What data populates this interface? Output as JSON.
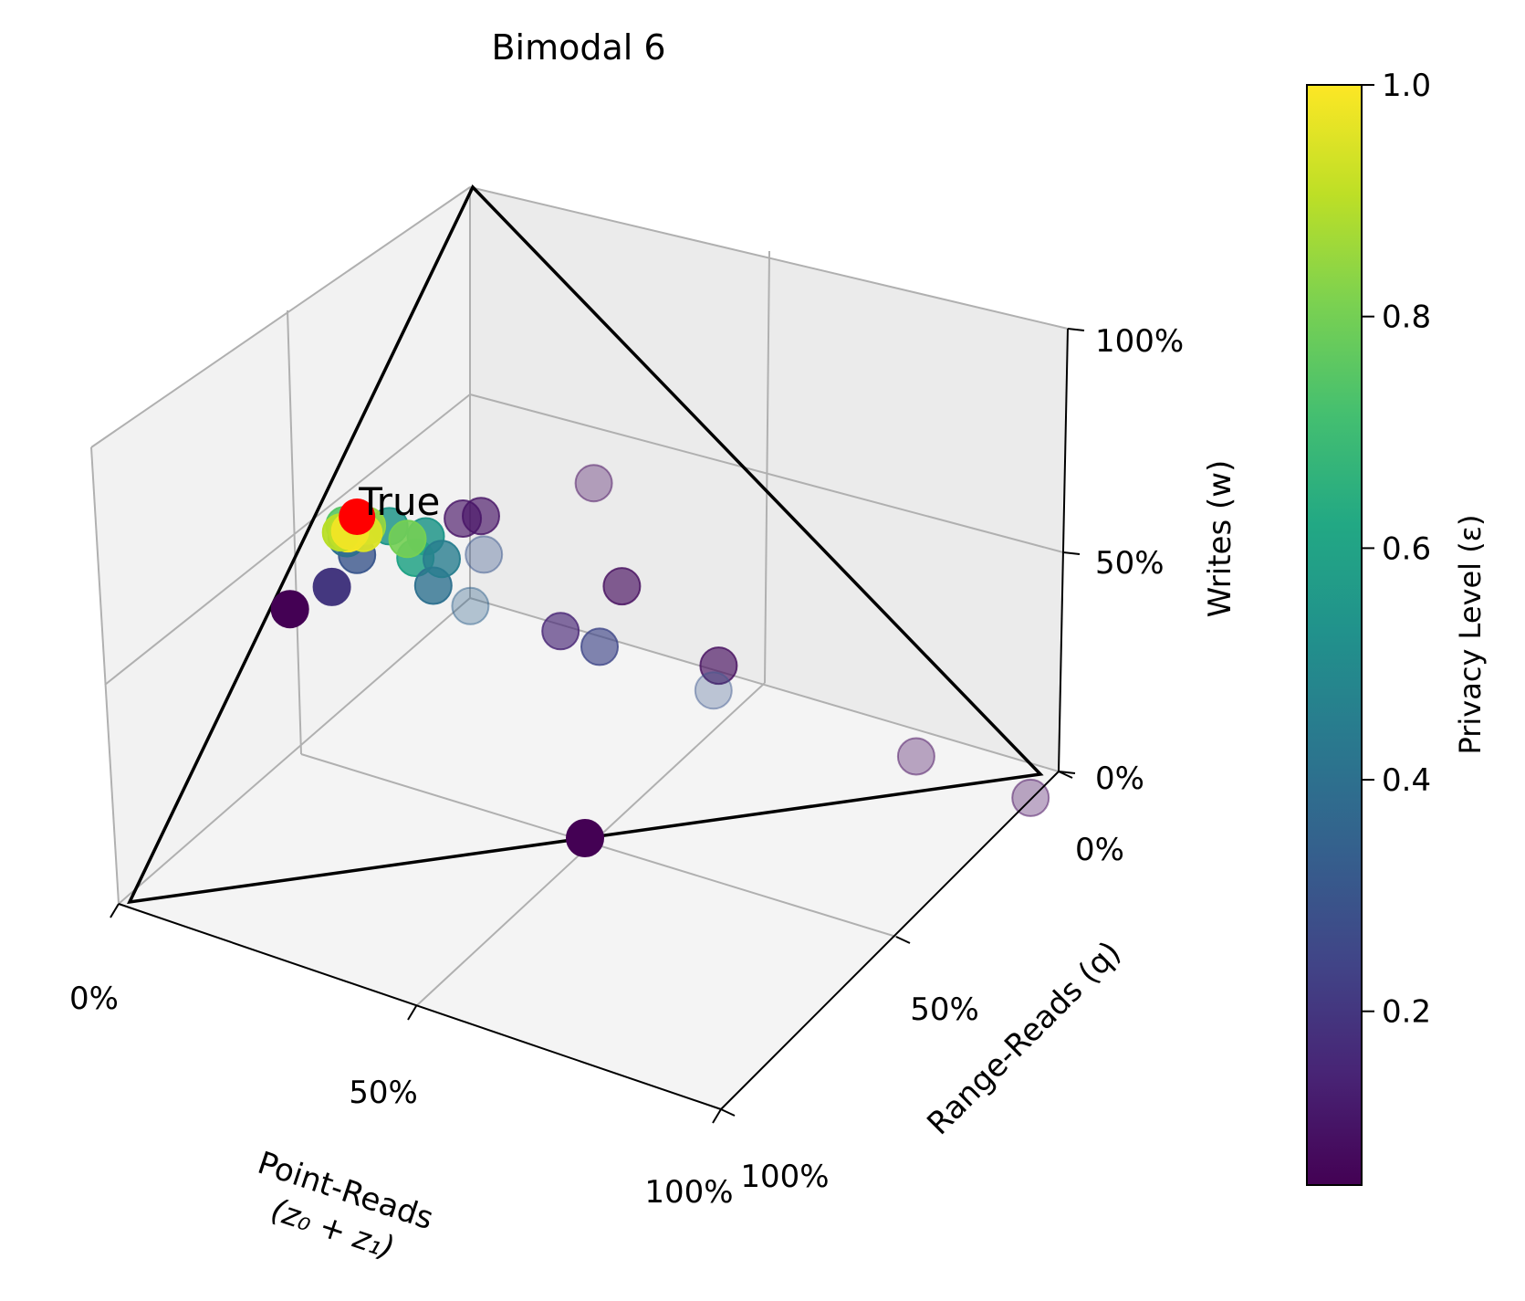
{
  "chart_data": {
    "type": "scatter",
    "title": "Bimodal 6",
    "xlabel_line1": "Point-Reads",
    "xlabel_line2": "(z₀ + z₁)",
    "ylabel": "Range-Reads (q)",
    "zlabel": "Writes (w)",
    "x_ticks": [
      "0%",
      "50%",
      "100%"
    ],
    "y_ticks": [
      "0%",
      "50%",
      "100%"
    ],
    "z_ticks": [
      "0%",
      "50%",
      "100%"
    ],
    "xlim": [
      0,
      1
    ],
    "ylim": [
      0,
      1
    ],
    "zlim": [
      0,
      1
    ],
    "colorbar": {
      "label": "Privacy Level (ε)",
      "range": [
        0.05,
        1.0
      ],
      "ticks": [
        "0.2",
        "0.4",
        "0.6",
        "0.8",
        "1.0"
      ],
      "tick_values": [
        0.2,
        0.4,
        0.6,
        0.8,
        1.0
      ],
      "colormap": "viridis"
    },
    "simplex_vertices": [
      [
        1,
        0,
        0
      ],
      [
        0,
        1,
        0
      ],
      [
        0,
        0,
        1
      ]
    ],
    "annotation": {
      "text": "True",
      "color": "#ff0000",
      "point": [
        0.42,
        0.05,
        0.53
      ]
    },
    "points": [
      {
        "x": 0.3,
        "y": 0.1,
        "z": 0.85,
        "eps": 0.08,
        "alpha": 0.35
      },
      {
        "x": 0.35,
        "y": 0.12,
        "z": 0.62,
        "eps": 0.1,
        "alpha": 0.65
      },
      {
        "x": 0.37,
        "y": 0.1,
        "z": 0.62,
        "eps": 0.1,
        "alpha": 0.65
      },
      {
        "x": 0.4,
        "y": 0.12,
        "z": 0.6,
        "eps": 0.3,
        "alpha": 0.35
      },
      {
        "x": 0.33,
        "y": 0.25,
        "z": 0.6,
        "eps": 0.08,
        "alpha": 0.65
      },
      {
        "x": 0.35,
        "y": 0.35,
        "z": 0.55,
        "eps": 0.08,
        "alpha": 0.65
      },
      {
        "x": 0.3,
        "y": 0.55,
        "z": 0.5,
        "eps": 0.08,
        "alpha": 0.35
      },
      {
        "x": 0.35,
        "y": 0.4,
        "z": 0.45,
        "eps": 0.3,
        "alpha": 0.3
      },
      {
        "x": 0.38,
        "y": 0.3,
        "z": 0.45,
        "eps": 0.25,
        "alpha": 0.65
      },
      {
        "x": 0.42,
        "y": 0.22,
        "z": 0.52,
        "eps": 0.15,
        "alpha": 0.65
      },
      {
        "x": 0.45,
        "y": 0.15,
        "z": 0.5,
        "eps": 0.35,
        "alpha": 0.35
      },
      {
        "x": 0.2,
        "y": 0.75,
        "z": 0.35,
        "eps": 0.08,
        "alpha": 0.35
      },
      {
        "x": 0.42,
        "y": 0.06,
        "z": 0.56,
        "eps": 0.55,
        "alpha": 0.85
      },
      {
        "x": 0.4,
        "y": 0.1,
        "z": 0.55,
        "eps": 0.55,
        "alpha": 0.85
      },
      {
        "x": 0.43,
        "y": 0.1,
        "z": 0.52,
        "eps": 0.6,
        "alpha": 0.85
      },
      {
        "x": 0.45,
        "y": 0.12,
        "z": 0.5,
        "eps": 0.4,
        "alpha": 0.8
      },
      {
        "x": 0.4,
        "y": 0.14,
        "z": 0.5,
        "eps": 0.45,
        "alpha": 0.8
      },
      {
        "x": 0.45,
        "y": 0.08,
        "z": 0.46,
        "eps": 0.3,
        "alpha": 0.8
      },
      {
        "x": 0.45,
        "y": 0.05,
        "z": 0.5,
        "eps": 0.4,
        "alpha": 0.85
      },
      {
        "x": 0.44,
        "y": 0.04,
        "z": 0.52,
        "eps": 0.75,
        "alpha": 0.9
      },
      {
        "x": 0.42,
        "y": 0.08,
        "z": 0.55,
        "eps": 0.8,
        "alpha": 0.9
      },
      {
        "x": 0.43,
        "y": 0.05,
        "z": 0.54,
        "eps": 0.85,
        "alpha": 0.9
      },
      {
        "x": 0.44,
        "y": 0.05,
        "z": 0.53,
        "eps": 0.95,
        "alpha": 0.95
      },
      {
        "x": 0.45,
        "y": 0.04,
        "z": 0.52,
        "eps": 1.0,
        "alpha": 0.95
      },
      {
        "x": 0.45,
        "y": 0.04,
        "z": 0.51,
        "eps": 0.9,
        "alpha": 0.95
      },
      {
        "x": 0.44,
        "y": 0.05,
        "z": 0.51,
        "eps": 0.98,
        "alpha": 0.95
      },
      {
        "x": 0.51,
        "y": 0.06,
        "z": 0.43,
        "eps": 0.2,
        "alpha": 1.0
      },
      {
        "x": 0.56,
        "y": 0.04,
        "z": 0.38,
        "eps": 0.05,
        "alpha": 1.0
      },
      {
        "x": 0.5,
        "y": 0.5,
        "z": 0.0,
        "eps": 0.05,
        "alpha": 1.0
      }
    ]
  }
}
